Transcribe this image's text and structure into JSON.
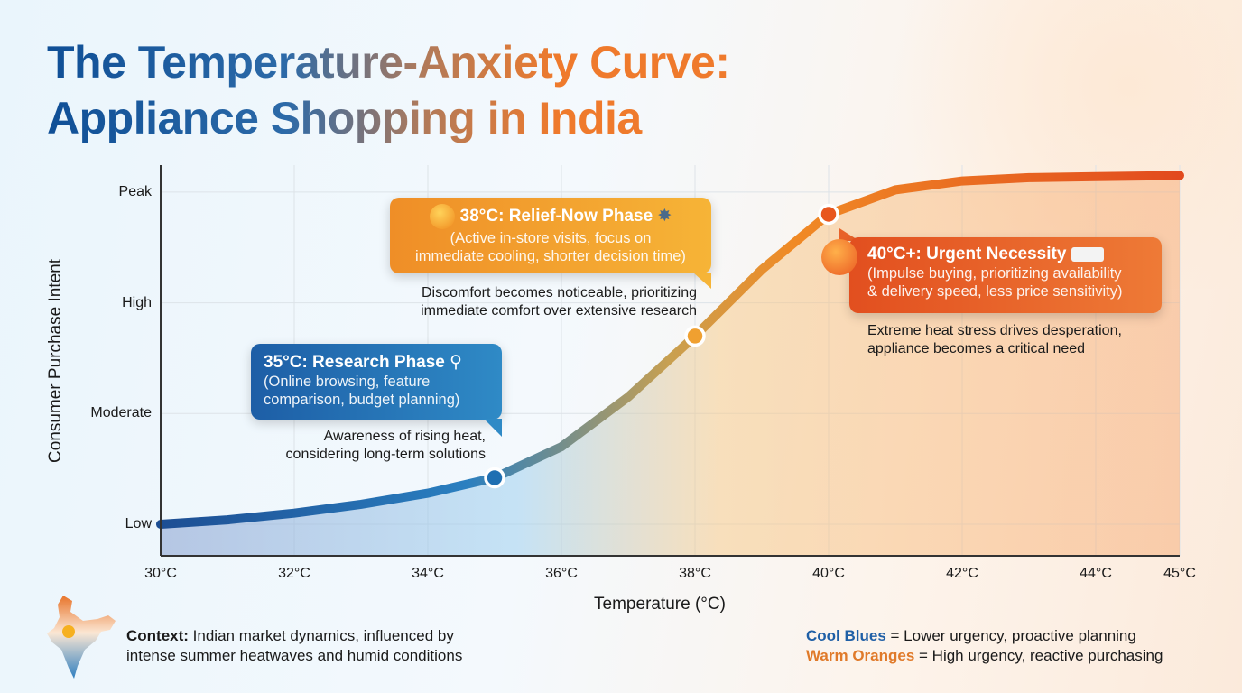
{
  "title_line1": "The Temperature-Anxiety Curve:",
  "title_line2": "Appliance Shopping in India",
  "chart_data": {
    "type": "line",
    "xlabel": "Temperature (°C)",
    "ylabel": "Consumer Purchase Intent",
    "x_ticks": [
      "30°C",
      "32°C",
      "34°C",
      "36°C",
      "38°C",
      "40°C",
      "42°C",
      "44°C",
      "45°C"
    ],
    "y_ticks": [
      "Low",
      "Moderate",
      "High",
      "Peak"
    ],
    "x_range": [
      30,
      45
    ],
    "y_scale_note_levels": {
      "Low": 0,
      "Moderate": 1,
      "High": 2,
      "Peak": 3
    },
    "grid": true,
    "series": [
      {
        "x": [
          30,
          31,
          32,
          33,
          34,
          35,
          36,
          37,
          38,
          39,
          40,
          41,
          42,
          43,
          44,
          45
        ],
        "y": [
          0,
          0.04,
          0.1,
          0.18,
          0.28,
          0.42,
          0.7,
          1.15,
          1.7,
          2.3,
          2.8,
          3.02,
          3.1,
          3.13,
          3.14,
          3.15
        ]
      }
    ],
    "markers": [
      {
        "x": 35,
        "y": 0.42,
        "color": "#1f6fb2"
      },
      {
        "x": 38,
        "y": 1.7,
        "color": "#f0a030"
      },
      {
        "x": 40,
        "y": 2.8,
        "color": "#e8561e"
      }
    ],
    "colors": {
      "cool": "#1f5fa6",
      "mid": "#f0a030",
      "warm": "#e8561e"
    }
  },
  "callouts": {
    "research": {
      "heading": "35°C: Research Phase",
      "icon": "magnifier-icon",
      "detail": "(Online browsing, feature comparison, budget planning)",
      "note_line1": "Awareness of rising heat,",
      "note_line2": "considering long-term solutions"
    },
    "relief": {
      "heading": "38°C: Relief-Now Phase",
      "icon": "fan-icon",
      "detail_line1": "(Active in-store visits, focus on",
      "detail_line2": "immediate cooling, shorter decision time)",
      "note_line1": "Discomfort becomes noticeable, prioritizing",
      "note_line2": "immediate comfort over extensive research"
    },
    "urgent": {
      "heading": "40°C+: Urgent Necessity",
      "icon": "air-conditioner-icon",
      "detail_line1": "(Impulse buying, prioritizing availability",
      "detail_line2": "& delivery speed, less price sensitivity)",
      "note_line1": "Extreme heat stress drives desperation,",
      "note_line2": "appliance becomes a critical need"
    }
  },
  "footer": {
    "context_label": "Context:",
    "context_line1": " Indian market dynamics, influenced by",
    "context_line2": "intense summer heatwaves and humid conditions",
    "legend": [
      {
        "label": "Cool Blues",
        "text": " = Lower urgency, proactive planning",
        "color": "#1f5fa6"
      },
      {
        "label": "Warm Oranges",
        "text": " = High urgency, reactive purchasing",
        "color": "#e07a2a"
      }
    ]
  }
}
